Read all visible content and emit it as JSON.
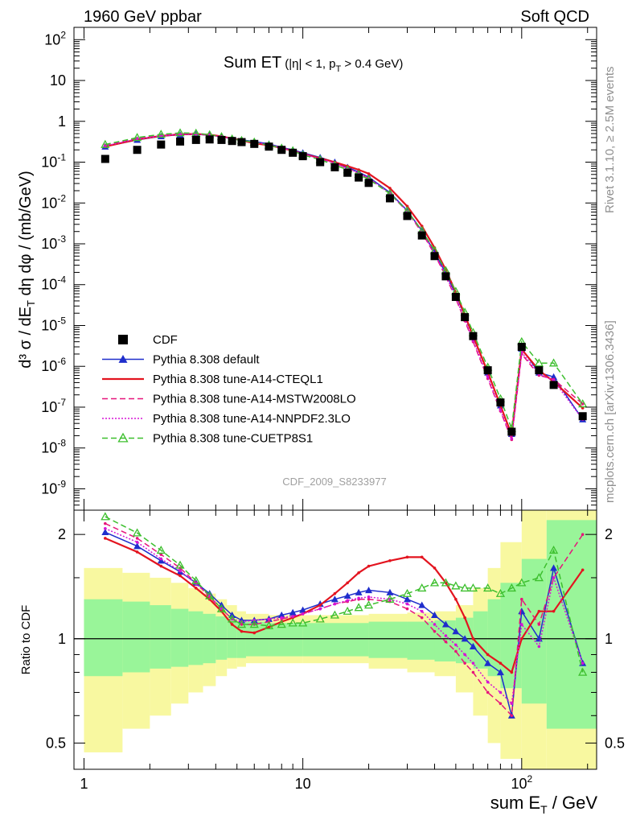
{
  "header": {
    "left": "1960 GeV ppbar",
    "right": "Soft QCD"
  },
  "side_labels": {
    "rivet": "Rivet 3.1.10, ≥ 2.5M events",
    "mcplots": "mcplots.cern.ch [arXiv:1306.3436]"
  },
  "analysis_id": "CDF_2009_S8233977",
  "plot_title": {
    "main": "Sum ET",
    "cut_prefix": "(|η| < 1, p",
    "cut_sub": "T",
    "cut_suffix": " > 0.4 GeV)"
  },
  "axis_labels": {
    "y_main": "d³ σ / dE_T dη dφ / (mb/GeV)",
    "y_ratio": "Ratio to CDF",
    "x": "sum E_T / GeV"
  },
  "legend": [
    {
      "label": "CDF",
      "color": "#000000",
      "style": "square-marker"
    },
    {
      "label": "Pythia 8.308 default",
      "color": "#1f2ecc",
      "style": "solid-triangle"
    },
    {
      "label": "Pythia 8.308 tune-A14-CTEQL1",
      "color": "#e3141f",
      "style": "solid-thick"
    },
    {
      "label": "Pythia 8.308 tune-A14-MSTW2008LO",
      "color": "#e6157b",
      "style": "dashed"
    },
    {
      "label": "Pythia 8.308 tune-A14-NNPDF2.3LO",
      "color": "#d515d5",
      "style": "dotted"
    },
    {
      "label": "Pythia 8.308 tune-CUETP8S1",
      "color": "#3dbf2e",
      "style": "dashed-open-triangle"
    }
  ],
  "chart_data": [
    {
      "type": "scatter",
      "panel": "main",
      "title": "Sum ET (|η| < 1, pT > 0.4 GeV)",
      "xlabel": "sum E_T / GeV",
      "ylabel": "d³ σ / dE_T dη dφ / (mb/GeV)",
      "xscale": "log",
      "yscale": "log",
      "xlim": [
        0.9,
        220
      ],
      "ylim": [
        3e-10,
        200
      ],
      "x_ticks": [
        "1",
        "10",
        "10^2"
      ],
      "y_ticks": [
        "10^-9",
        "10^-8",
        "10^-7",
        "10^-6",
        "10^-5",
        "10^-4",
        "10^-3",
        "10^-2",
        "10^-1",
        "1",
        "10",
        "10^2"
      ],
      "legend_position": "bottom-left",
      "cdf": {
        "x": [
          1.25,
          1.75,
          2.25,
          2.75,
          3.25,
          3.75,
          4.25,
          4.75,
          5.25,
          6,
          7,
          8,
          9,
          10,
          12,
          14,
          16,
          18,
          20,
          25,
          30,
          35,
          40,
          45,
          50,
          55,
          60,
          70,
          80,
          90,
          100,
          120,
          140,
          190
        ],
        "y": [
          0.12,
          0.2,
          0.27,
          0.32,
          0.35,
          0.36,
          0.35,
          0.33,
          0.31,
          0.28,
          0.24,
          0.2,
          0.17,
          0.14,
          0.1,
          0.075,
          0.055,
          0.042,
          0.031,
          0.013,
          0.0048,
          0.0016,
          0.0005,
          0.00016,
          5e-05,
          1.6e-05,
          5.5e-06,
          8e-07,
          1.3e-07,
          2.5e-08,
          3e-06,
          8e-07,
          3.5e-07,
          6e-08
        ]
      },
      "series": [
        {
          "name": "Pythia 8.308 default",
          "x": [
            1.25,
            1.75,
            2.25,
            2.75,
            3.25,
            3.75,
            4.25,
            4.75,
            5.25,
            6,
            7,
            8,
            9,
            10,
            12,
            14,
            16,
            18,
            20,
            25,
            30,
            35,
            40,
            45,
            50,
            55,
            60,
            70,
            80,
            90,
            100,
            120,
            140,
            190
          ],
          "y": [
            0.24,
            0.35,
            0.43,
            0.47,
            0.48,
            0.46,
            0.42,
            0.38,
            0.35,
            0.32,
            0.28,
            0.23,
            0.2,
            0.17,
            0.13,
            0.1,
            0.075,
            0.057,
            0.043,
            0.018,
            0.0065,
            0.0021,
            0.00063,
            0.00019,
            5.7e-05,
            1.7e-05,
            5.3e-06,
            7e-07,
            1.1e-07,
            2.2e-08,
            2.7e-06,
            7e-07,
            5.5e-07,
            5e-08
          ]
        },
        {
          "name": "Pythia 8.308 tune-A14-CTEQL1",
          "x": [
            1.25,
            1.75,
            2.25,
            2.75,
            3.25,
            3.75,
            4.25,
            4.75,
            5.25,
            6,
            7,
            8,
            9,
            10,
            12,
            14,
            16,
            18,
            20,
            25,
            30,
            35,
            40,
            45,
            50,
            55,
            60,
            70,
            80,
            90,
            100,
            120,
            140,
            190
          ],
          "y": [
            0.24,
            0.36,
            0.44,
            0.48,
            0.49,
            0.47,
            0.43,
            0.38,
            0.34,
            0.29,
            0.26,
            0.22,
            0.19,
            0.16,
            0.125,
            0.1,
            0.08,
            0.065,
            0.052,
            0.023,
            0.0083,
            0.0027,
            0.0008,
            0.00023,
            6.5e-05,
            1.8e-05,
            5.5e-06,
            7.2e-07,
            1.1e-07,
            2.1e-08,
            2.6e-06,
            8e-07,
            4.2e-07,
            9.5e-08
          ]
        },
        {
          "name": "Pythia 8.308 tune-A14-MSTW2008LO",
          "x": [
            1.25,
            1.75,
            2.25,
            2.75,
            3.25,
            3.75,
            4.25,
            4.75,
            5.25,
            6,
            7,
            8,
            9,
            10,
            12,
            14,
            16,
            18,
            20,
            25,
            30,
            35,
            40,
            45,
            50,
            55,
            60,
            70,
            80,
            90,
            100,
            120,
            140,
            190
          ],
          "y": [
            0.26,
            0.38,
            0.45,
            0.49,
            0.49,
            0.47,
            0.42,
            0.37,
            0.34,
            0.3,
            0.26,
            0.22,
            0.19,
            0.16,
            0.12,
            0.095,
            0.07,
            0.054,
            0.04,
            0.017,
            0.0062,
            0.0019,
            0.00055,
            0.00016,
            4.5e-05,
            1.3e-05,
            4e-06,
            5e-07,
            8e-08,
            1.6e-08,
            2e-06,
            6e-07,
            4.8e-07,
            1.2e-07
          ]
        },
        {
          "name": "Pythia 8.308 tune-A14-NNPDF2.3LO",
          "x": [
            1.25,
            1.75,
            2.25,
            2.75,
            3.25,
            3.75,
            4.25,
            4.75,
            5.25,
            6,
            7,
            8,
            9,
            10,
            12,
            14,
            16,
            18,
            20,
            25,
            30,
            35,
            40,
            45,
            50,
            55,
            60,
            70,
            80,
            90,
            100,
            120,
            140,
            190
          ],
          "y": [
            0.25,
            0.37,
            0.44,
            0.48,
            0.49,
            0.46,
            0.42,
            0.37,
            0.34,
            0.31,
            0.27,
            0.22,
            0.19,
            0.16,
            0.12,
            0.095,
            0.07,
            0.054,
            0.041,
            0.017,
            0.0063,
            0.002,
            0.00058,
            0.00017,
            4.8e-05,
            1.4e-05,
            4.3e-06,
            5.5e-07,
            8.5e-08,
            1.7e-08,
            2.2e-06,
            6.5e-07,
            4.5e-07,
            5e-08
          ]
        },
        {
          "name": "Pythia 8.308 tune-CUETP8S1",
          "x": [
            1.25,
            1.75,
            2.25,
            2.75,
            3.25,
            3.75,
            4.25,
            4.75,
            5.25,
            6,
            7,
            8,
            9,
            10,
            12,
            14,
            16,
            18,
            20,
            25,
            30,
            35,
            40,
            45,
            50,
            55,
            60,
            70,
            80,
            90,
            100,
            120,
            140,
            190
          ],
          "y": [
            0.27,
            0.4,
            0.48,
            0.52,
            0.51,
            0.47,
            0.42,
            0.37,
            0.34,
            0.31,
            0.26,
            0.22,
            0.19,
            0.15,
            0.115,
            0.085,
            0.065,
            0.05,
            0.038,
            0.017,
            0.0064,
            0.0021,
            0.00068,
            0.00022,
            6.8e-05,
            2.1e-05,
            6.7e-06,
            9.5e-07,
            1.6e-07,
            3e-08,
            4e-06,
            1.2e-06,
            1.2e-06,
            1.2e-07
          ]
        }
      ]
    },
    {
      "type": "line",
      "panel": "ratio",
      "xlabel": "sum E_T / GeV",
      "ylabel": "Ratio to CDF",
      "xscale": "log",
      "yscale": "log",
      "xlim": [
        0.9,
        220
      ],
      "ylim": [
        0.42,
        2.35
      ],
      "x_ticks": [
        "1",
        "10",
        "10^2"
      ],
      "y_ticks": [
        "0.5",
        "1",
        "2"
      ],
      "reference_line": 1,
      "uncertainty_bands": [
        {
          "name": "inner",
          "color": "#99f599",
          "x_edges": [
            1.0,
            1.5,
            2.0,
            2.5,
            3.0,
            3.5,
            4.0,
            4.5,
            5.0,
            5.5,
            7,
            10,
            20,
            30,
            40,
            50,
            60,
            70,
            80,
            100,
            130,
            220
          ],
          "lo": [
            0.78,
            0.8,
            0.82,
            0.83,
            0.84,
            0.85,
            0.87,
            0.88,
            0.88,
            0.89,
            0.89,
            0.89,
            0.88,
            0.87,
            0.86,
            0.85,
            0.82,
            0.78,
            0.72,
            0.65,
            0.55,
            0.45
          ],
          "hi": [
            1.3,
            1.28,
            1.25,
            1.22,
            1.2,
            1.18,
            1.16,
            1.14,
            1.12,
            1.12,
            1.11,
            1.11,
            1.12,
            1.12,
            1.13,
            1.15,
            1.2,
            1.3,
            1.45,
            1.7,
            2.2,
            2.35
          ]
        },
        {
          "name": "outer",
          "color": "#f8f8a0",
          "x_edges": [
            1.0,
            1.5,
            2.0,
            2.5,
            3.0,
            3.5,
            4.0,
            4.5,
            5.0,
            5.5,
            7,
            10,
            20,
            30,
            40,
            50,
            60,
            70,
            80,
            100,
            130,
            220
          ],
          "lo": [
            0.47,
            0.55,
            0.6,
            0.65,
            0.7,
            0.73,
            0.78,
            0.82,
            0.83,
            0.85,
            0.85,
            0.85,
            0.82,
            0.8,
            0.78,
            0.7,
            0.6,
            0.5,
            0.45,
            0.42,
            0.42,
            0.42
          ],
          "hi": [
            1.6,
            1.55,
            1.5,
            1.45,
            1.4,
            1.35,
            1.3,
            1.25,
            1.2,
            1.18,
            1.17,
            1.17,
            1.18,
            1.19,
            1.2,
            1.25,
            1.4,
            1.6,
            1.9,
            2.35,
            2.35,
            2.35
          ]
        }
      ],
      "series": [
        {
          "name": "Pythia 8.308 default",
          "x": [
            1.25,
            1.75,
            2.25,
            2.75,
            3.25,
            3.75,
            4.25,
            4.75,
            5.25,
            6,
            7,
            8,
            9,
            10,
            12,
            14,
            16,
            18,
            20,
            25,
            30,
            35,
            40,
            45,
            50,
            55,
            60,
            70,
            80,
            90,
            100,
            120,
            140,
            190
          ],
          "y": [
            2.03,
            1.85,
            1.68,
            1.56,
            1.45,
            1.35,
            1.25,
            1.17,
            1.13,
            1.13,
            1.14,
            1.17,
            1.19,
            1.21,
            1.26,
            1.3,
            1.33,
            1.36,
            1.38,
            1.36,
            1.3,
            1.25,
            1.17,
            1.1,
            1.05,
            1.0,
            0.95,
            0.85,
            0.8,
            0.6,
            1.2,
            1.0,
            1.6,
            0.85
          ]
        },
        {
          "name": "Pythia 8.308 tune-A14-CTEQL1",
          "x": [
            1.25,
            1.75,
            2.25,
            2.75,
            3.25,
            3.75,
            4.25,
            4.75,
            5.25,
            6,
            7,
            8,
            9,
            10,
            12,
            14,
            16,
            18,
            20,
            25,
            30,
            35,
            40,
            45,
            50,
            55,
            60,
            70,
            80,
            90,
            100,
            120,
            140,
            190
          ],
          "y": [
            1.95,
            1.78,
            1.62,
            1.52,
            1.4,
            1.3,
            1.2,
            1.1,
            1.05,
            1.04,
            1.08,
            1.12,
            1.15,
            1.18,
            1.25,
            1.35,
            1.45,
            1.55,
            1.62,
            1.68,
            1.72,
            1.72,
            1.6,
            1.45,
            1.3,
            1.15,
            1.0,
            0.9,
            0.85,
            0.8,
            1.0,
            1.2,
            1.2,
            1.58
          ]
        },
        {
          "name": "Pythia 8.308 tune-A14-MSTW2008LO",
          "x": [
            1.25,
            1.75,
            2.25,
            2.75,
            3.25,
            3.75,
            4.25,
            4.75,
            5.25,
            6,
            7,
            8,
            9,
            10,
            12,
            14,
            16,
            18,
            20,
            25,
            30,
            35,
            40,
            45,
            50,
            55,
            60,
            70,
            80,
            90,
            100,
            120,
            140,
            190
          ],
          "y": [
            2.15,
            1.95,
            1.75,
            1.6,
            1.45,
            1.32,
            1.22,
            1.14,
            1.1,
            1.1,
            1.12,
            1.14,
            1.16,
            1.18,
            1.22,
            1.26,
            1.28,
            1.3,
            1.3,
            1.28,
            1.22,
            1.15,
            1.05,
            0.98,
            0.92,
            0.85,
            0.8,
            0.7,
            0.65,
            0.6,
            1.3,
            1.1,
            1.5,
            2.0
          ]
        },
        {
          "name": "Pythia 8.308 tune-A14-NNPDF2.3LO",
          "x": [
            1.25,
            1.75,
            2.25,
            2.75,
            3.25,
            3.75,
            4.25,
            4.75,
            5.25,
            6,
            7,
            8,
            9,
            10,
            12,
            14,
            16,
            18,
            20,
            25,
            30,
            35,
            40,
            45,
            50,
            55,
            60,
            70,
            80,
            90,
            100,
            120,
            140,
            190
          ],
          "y": [
            2.08,
            1.9,
            1.7,
            1.57,
            1.44,
            1.33,
            1.22,
            1.14,
            1.12,
            1.13,
            1.14,
            1.15,
            1.16,
            1.18,
            1.22,
            1.26,
            1.29,
            1.31,
            1.32,
            1.3,
            1.26,
            1.2,
            1.1,
            1.02,
            0.96,
            0.9,
            0.85,
            0.75,
            0.7,
            0.65,
            1.1,
            0.95,
            1.5,
            0.85
          ]
        },
        {
          "name": "Pythia 8.308 tune-CUETP8S1",
          "x": [
            1.25,
            1.75,
            2.25,
            2.75,
            3.25,
            3.75,
            4.25,
            4.75,
            5.25,
            6,
            7,
            8,
            9,
            10,
            12,
            14,
            16,
            18,
            20,
            25,
            30,
            35,
            40,
            45,
            50,
            55,
            60,
            70,
            80,
            90,
            100,
            120,
            140,
            190
          ],
          "y": [
            2.25,
            2.02,
            1.8,
            1.63,
            1.47,
            1.33,
            1.22,
            1.14,
            1.1,
            1.1,
            1.09,
            1.1,
            1.11,
            1.11,
            1.14,
            1.17,
            1.2,
            1.23,
            1.25,
            1.3,
            1.35,
            1.4,
            1.45,
            1.45,
            1.42,
            1.4,
            1.4,
            1.4,
            1.35,
            1.4,
            1.45,
            1.5,
            1.8,
            0.8
          ]
        }
      ]
    }
  ]
}
